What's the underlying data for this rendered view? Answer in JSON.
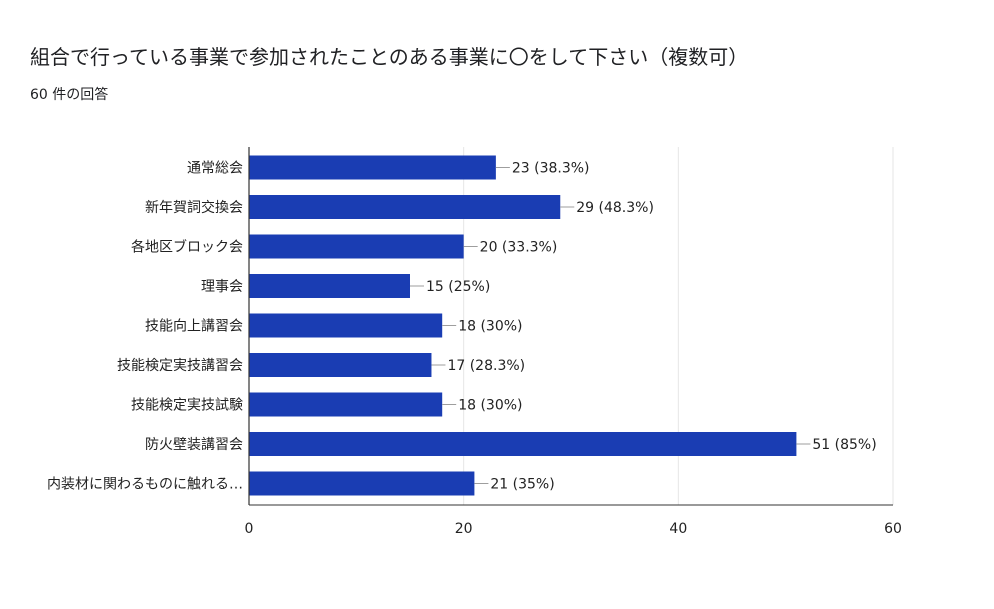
{
  "header": {
    "title": "組合で行っている事業で参加されたことのある事業に〇をして下さい（複数可）",
    "response_count": "60 件の回答"
  },
  "colors": {
    "bar": "#1a3db3",
    "grid": "#e6e6e6",
    "axis": "#333333",
    "leader": "#9e9e9e"
  },
  "chart_data": {
    "type": "bar",
    "orientation": "horizontal",
    "categories": [
      "通常総会",
      "新年賀詞交換会",
      "各地区ブロック会",
      "理事会",
      "技能向上講習会",
      "技能検定実技講習会",
      "技能検定実技試験",
      "防火壁装講習会",
      "内装材に関わるものに触れる…"
    ],
    "values": [
      23,
      29,
      20,
      15,
      18,
      17,
      18,
      51,
      21
    ],
    "data_labels": [
      "23 (38.3%)",
      "29 (48.3%)",
      "20 (33.3%)",
      "15 (25%)",
      "18 (30%)",
      "17 (28.3%)",
      "18 (30%)",
      "51 (85%)",
      "21 (35%)"
    ],
    "xlim": [
      0,
      60
    ],
    "xticks": [
      0,
      20,
      40,
      60
    ],
    "xtick_labels": [
      "0",
      "20",
      "40",
      "60"
    ],
    "grid": true
  }
}
